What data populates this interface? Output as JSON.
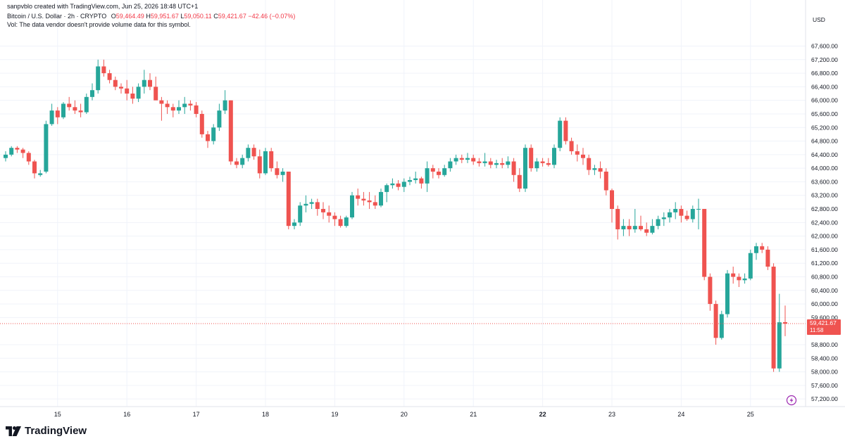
{
  "header": {
    "credit": "sanpvblo created with TradingView.com, Jun 25, 2026 18:48 UTC+1",
    "symbol": "Bitcoin / U.S. Dollar · 2h · CRYPTO",
    "o_label": "O",
    "o_value": "59,464.49",
    "h_label": "H",
    "h_value": "59,951.67",
    "l_label": "L",
    "l_value": "59,050.11",
    "c_label": "C",
    "c_value": "59,421.67",
    "change": "−42.46 (−0.07%)",
    "vol_note": "Vol: The data vendor doesn't provide volume data for this symbol."
  },
  "brand": {
    "name": "TradingView",
    "logo_icon": "tradingview-logo-icon"
  },
  "colors": {
    "up": "#26a69a",
    "down": "#ef5350",
    "grid": "#f0f3fa",
    "axis": "#e0e3eb"
  },
  "chart_data": {
    "type": "candlestick",
    "currency": "USD",
    "y_ticks": [
      "67,600.00",
      "67,200.00",
      "66,800.00",
      "66,400.00",
      "66,000.00",
      "65,600.00",
      "65,200.00",
      "64,800.00",
      "64,400.00",
      "64,000.00",
      "63,600.00",
      "63,200.00",
      "62,800.00",
      "62,400.00",
      "62,000.00",
      "61,600.00",
      "61,200.00",
      "60,800.00",
      "60,400.00",
      "60,000.00",
      "59,600.00",
      "58,800.00",
      "58,400.00",
      "58,000.00",
      "57,600.00",
      "57,200.00"
    ],
    "ylim": [
      57100,
      67900
    ],
    "x_ticks": [
      {
        "label": "15",
        "index": 9
      },
      {
        "label": "16",
        "index": 21
      },
      {
        "label": "17",
        "index": 33
      },
      {
        "label": "18",
        "index": 45
      },
      {
        "label": "19",
        "index": 57
      },
      {
        "label": "20",
        "index": 69
      },
      {
        "label": "21",
        "index": 81
      },
      {
        "label": "22",
        "index": 93
      },
      {
        "label": "23",
        "index": 105
      },
      {
        "label": "24",
        "index": 117
      },
      {
        "label": "25",
        "index": 129
      }
    ],
    "last_price": {
      "value": 59421.67,
      "label": "59,421.67",
      "countdown": "11:58"
    },
    "candles": [
      {
        "o": 64300,
        "h": 64500,
        "l": 64200,
        "c": 64400
      },
      {
        "o": 64400,
        "h": 64650,
        "l": 64350,
        "c": 64600
      },
      {
        "o": 64600,
        "h": 64650,
        "l": 64450,
        "c": 64550
      },
      {
        "o": 64550,
        "h": 64600,
        "l": 64300,
        "c": 64450
      },
      {
        "o": 64450,
        "h": 64500,
        "l": 64100,
        "c": 64200
      },
      {
        "o": 64200,
        "h": 64250,
        "l": 63700,
        "c": 63850
      },
      {
        "o": 63800,
        "h": 63950,
        "l": 63750,
        "c": 63850
      },
      {
        "o": 63900,
        "h": 65400,
        "l": 63850,
        "c": 65300
      },
      {
        "o": 65300,
        "h": 65900,
        "l": 65250,
        "c": 65700
      },
      {
        "o": 65700,
        "h": 65800,
        "l": 65300,
        "c": 65500
      },
      {
        "o": 65500,
        "h": 65950,
        "l": 65450,
        "c": 65900
      },
      {
        "o": 65900,
        "h": 66100,
        "l": 65700,
        "c": 65800
      },
      {
        "o": 65800,
        "h": 66000,
        "l": 65600,
        "c": 65700
      },
      {
        "o": 65700,
        "h": 65900,
        "l": 65500,
        "c": 65650
      },
      {
        "o": 65650,
        "h": 66200,
        "l": 65600,
        "c": 66100
      },
      {
        "o": 66100,
        "h": 66500,
        "l": 66000,
        "c": 66300
      },
      {
        "o": 66300,
        "h": 67200,
        "l": 66200,
        "c": 67000
      },
      {
        "o": 67000,
        "h": 67200,
        "l": 66700,
        "c": 66800
      },
      {
        "o": 66800,
        "h": 66900,
        "l": 66500,
        "c": 66600
      },
      {
        "o": 66600,
        "h": 66700,
        "l": 66300,
        "c": 66400
      },
      {
        "o": 66400,
        "h": 66500,
        "l": 66200,
        "c": 66350
      },
      {
        "o": 66350,
        "h": 66600,
        "l": 66000,
        "c": 66200
      },
      {
        "o": 66200,
        "h": 66400,
        "l": 65900,
        "c": 66050
      },
      {
        "o": 66050,
        "h": 66500,
        "l": 65950,
        "c": 66400
      },
      {
        "o": 66400,
        "h": 66900,
        "l": 66200,
        "c": 66600
      },
      {
        "o": 66600,
        "h": 66800,
        "l": 66300,
        "c": 66400
      },
      {
        "o": 66400,
        "h": 66700,
        "l": 66100,
        "c": 66000
      },
      {
        "o": 66000,
        "h": 66100,
        "l": 65400,
        "c": 65900
      },
      {
        "o": 65900,
        "h": 66000,
        "l": 65600,
        "c": 65800
      },
      {
        "o": 65800,
        "h": 65900,
        "l": 65500,
        "c": 65700
      },
      {
        "o": 65700,
        "h": 66000,
        "l": 65600,
        "c": 65800
      },
      {
        "o": 65800,
        "h": 66100,
        "l": 65600,
        "c": 65900
      },
      {
        "o": 65900,
        "h": 66000,
        "l": 65700,
        "c": 65850
      },
      {
        "o": 65850,
        "h": 65950,
        "l": 65500,
        "c": 65600
      },
      {
        "o": 65600,
        "h": 65700,
        "l": 64900,
        "c": 65000
      },
      {
        "o": 65000,
        "h": 65100,
        "l": 64600,
        "c": 64800
      },
      {
        "o": 64800,
        "h": 65300,
        "l": 64700,
        "c": 65200
      },
      {
        "o": 65200,
        "h": 65900,
        "l": 65100,
        "c": 65700
      },
      {
        "o": 65700,
        "h": 66300,
        "l": 65600,
        "c": 66000
      },
      {
        "o": 66000,
        "h": 66000,
        "l": 64100,
        "c": 64200
      },
      {
        "o": 64200,
        "h": 64300,
        "l": 64000,
        "c": 64100
      },
      {
        "o": 64100,
        "h": 64400,
        "l": 64000,
        "c": 64300
      },
      {
        "o": 64300,
        "h": 64700,
        "l": 64200,
        "c": 64600
      },
      {
        "o": 64600,
        "h": 64700,
        "l": 64250,
        "c": 64350
      },
      {
        "o": 64350,
        "h": 64550,
        "l": 63700,
        "c": 63850
      },
      {
        "o": 63850,
        "h": 64600,
        "l": 63800,
        "c": 64500
      },
      {
        "o": 64500,
        "h": 64600,
        "l": 63900,
        "c": 64000
      },
      {
        "o": 64000,
        "h": 64200,
        "l": 63700,
        "c": 63800
      },
      {
        "o": 63800,
        "h": 64000,
        "l": 63600,
        "c": 63900
      },
      {
        "o": 63900,
        "h": 63900,
        "l": 62200,
        "c": 62300
      },
      {
        "o": 62300,
        "h": 62500,
        "l": 62200,
        "c": 62400
      },
      {
        "o": 62400,
        "h": 63000,
        "l": 62300,
        "c": 62900
      },
      {
        "o": 62900,
        "h": 63200,
        "l": 62700,
        "c": 62950
      },
      {
        "o": 62950,
        "h": 63100,
        "l": 62800,
        "c": 63000
      },
      {
        "o": 63000,
        "h": 63100,
        "l": 62600,
        "c": 62800
      },
      {
        "o": 62800,
        "h": 63000,
        "l": 62500,
        "c": 62700
      },
      {
        "o": 62700,
        "h": 62900,
        "l": 62400,
        "c": 62600
      },
      {
        "o": 62600,
        "h": 62700,
        "l": 62300,
        "c": 62500
      },
      {
        "o": 62500,
        "h": 62600,
        "l": 62250,
        "c": 62300
      },
      {
        "o": 62300,
        "h": 62600,
        "l": 62250,
        "c": 62550
      },
      {
        "o": 62550,
        "h": 63300,
        "l": 62500,
        "c": 63200
      },
      {
        "o": 63200,
        "h": 63400,
        "l": 62900,
        "c": 63100
      },
      {
        "o": 63100,
        "h": 63300,
        "l": 62900,
        "c": 63050
      },
      {
        "o": 63050,
        "h": 63300,
        "l": 62800,
        "c": 63000
      },
      {
        "o": 63000,
        "h": 63200,
        "l": 62800,
        "c": 62900
      },
      {
        "o": 62900,
        "h": 63400,
        "l": 62850,
        "c": 63300
      },
      {
        "o": 63300,
        "h": 63550,
        "l": 63000,
        "c": 63500
      },
      {
        "o": 63500,
        "h": 63700,
        "l": 63400,
        "c": 63550
      },
      {
        "o": 63550,
        "h": 63650,
        "l": 63350,
        "c": 63450
      },
      {
        "o": 63450,
        "h": 63700,
        "l": 63300,
        "c": 63600
      },
      {
        "o": 63600,
        "h": 63750,
        "l": 63500,
        "c": 63650
      },
      {
        "o": 63650,
        "h": 63900,
        "l": 63550,
        "c": 63700
      },
      {
        "o": 63700,
        "h": 63750,
        "l": 63400,
        "c": 63550
      },
      {
        "o": 63550,
        "h": 64200,
        "l": 63300,
        "c": 64000
      },
      {
        "o": 64000,
        "h": 64100,
        "l": 63700,
        "c": 63900
      },
      {
        "o": 63900,
        "h": 64000,
        "l": 63700,
        "c": 63800
      },
      {
        "o": 63800,
        "h": 64100,
        "l": 63750,
        "c": 64000
      },
      {
        "o": 64000,
        "h": 64300,
        "l": 63900,
        "c": 64200
      },
      {
        "o": 64200,
        "h": 64400,
        "l": 64100,
        "c": 64300
      },
      {
        "o": 64300,
        "h": 64400,
        "l": 64150,
        "c": 64250
      },
      {
        "o": 64250,
        "h": 64450,
        "l": 64150,
        "c": 64300
      },
      {
        "o": 64300,
        "h": 64400,
        "l": 64100,
        "c": 64200
      },
      {
        "o": 64200,
        "h": 64300,
        "l": 64050,
        "c": 64150
      },
      {
        "o": 64150,
        "h": 64450,
        "l": 64050,
        "c": 64200
      },
      {
        "o": 64200,
        "h": 64300,
        "l": 64000,
        "c": 64100
      },
      {
        "o": 64100,
        "h": 64250,
        "l": 64000,
        "c": 64150
      },
      {
        "o": 64150,
        "h": 64300,
        "l": 64000,
        "c": 64100
      },
      {
        "o": 64100,
        "h": 64350,
        "l": 64000,
        "c": 64200
      },
      {
        "o": 64200,
        "h": 64300,
        "l": 63600,
        "c": 63800
      },
      {
        "o": 63800,
        "h": 64000,
        "l": 63300,
        "c": 63400
      },
      {
        "o": 63400,
        "h": 64700,
        "l": 63300,
        "c": 64600
      },
      {
        "o": 64600,
        "h": 64700,
        "l": 63900,
        "c": 64000
      },
      {
        "o": 64000,
        "h": 64300,
        "l": 63900,
        "c": 64200
      },
      {
        "o": 64200,
        "h": 64300,
        "l": 64050,
        "c": 64150
      },
      {
        "o": 64150,
        "h": 64300,
        "l": 64050,
        "c": 64100
      },
      {
        "o": 64100,
        "h": 64700,
        "l": 64000,
        "c": 64600
      },
      {
        "o": 64600,
        "h": 65500,
        "l": 64500,
        "c": 65400
      },
      {
        "o": 65400,
        "h": 65500,
        "l": 64700,
        "c": 64800
      },
      {
        "o": 64800,
        "h": 64900,
        "l": 64400,
        "c": 64500
      },
      {
        "o": 64500,
        "h": 64700,
        "l": 64200,
        "c": 64400
      },
      {
        "o": 64400,
        "h": 64600,
        "l": 64100,
        "c": 64300
      },
      {
        "o": 64300,
        "h": 64400,
        "l": 63800,
        "c": 63950
      },
      {
        "o": 63950,
        "h": 64100,
        "l": 63800,
        "c": 64000
      },
      {
        "o": 64000,
        "h": 64200,
        "l": 63700,
        "c": 63900
      },
      {
        "o": 63900,
        "h": 64000,
        "l": 63200,
        "c": 63350
      },
      {
        "o": 63350,
        "h": 63400,
        "l": 62400,
        "c": 62800
      },
      {
        "o": 62800,
        "h": 62900,
        "l": 61900,
        "c": 62200
      },
      {
        "o": 62200,
        "h": 62500,
        "l": 62000,
        "c": 62300
      },
      {
        "o": 62300,
        "h": 62500,
        "l": 62000,
        "c": 62200
      },
      {
        "o": 62200,
        "h": 62800,
        "l": 62100,
        "c": 62300
      },
      {
        "o": 62300,
        "h": 62600,
        "l": 62150,
        "c": 62200
      },
      {
        "o": 62200,
        "h": 62400,
        "l": 62000,
        "c": 62100
      },
      {
        "o": 62100,
        "h": 62500,
        "l": 62050,
        "c": 62300
      },
      {
        "o": 62300,
        "h": 62600,
        "l": 62200,
        "c": 62500
      },
      {
        "o": 62500,
        "h": 62700,
        "l": 62300,
        "c": 62550
      },
      {
        "o": 62550,
        "h": 62800,
        "l": 62400,
        "c": 62700
      },
      {
        "o": 62700,
        "h": 63000,
        "l": 62500,
        "c": 62800
      },
      {
        "o": 62800,
        "h": 62900,
        "l": 62400,
        "c": 62600
      },
      {
        "o": 62600,
        "h": 62750,
        "l": 62450,
        "c": 62500
      },
      {
        "o": 62500,
        "h": 62900,
        "l": 62400,
        "c": 62800
      },
      {
        "o": 62800,
        "h": 63100,
        "l": 62200,
        "c": 62800
      },
      {
        "o": 62800,
        "h": 62800,
        "l": 60700,
        "c": 60800
      },
      {
        "o": 60800,
        "h": 60900,
        "l": 59800,
        "c": 60000
      },
      {
        "o": 60000,
        "h": 60100,
        "l": 58800,
        "c": 59000
      },
      {
        "o": 59000,
        "h": 59800,
        "l": 58950,
        "c": 59700
      },
      {
        "o": 59700,
        "h": 61000,
        "l": 59600,
        "c": 60900
      },
      {
        "o": 60900,
        "h": 61100,
        "l": 60600,
        "c": 60800
      },
      {
        "o": 60800,
        "h": 60900,
        "l": 60500,
        "c": 60700
      },
      {
        "o": 60700,
        "h": 60900,
        "l": 60600,
        "c": 60750
      },
      {
        "o": 60750,
        "h": 61600,
        "l": 60700,
        "c": 61500
      },
      {
        "o": 61500,
        "h": 61800,
        "l": 61300,
        "c": 61700
      },
      {
        "o": 61700,
        "h": 61800,
        "l": 61500,
        "c": 61600
      },
      {
        "o": 61600,
        "h": 61700,
        "l": 61000,
        "c": 61100
      },
      {
        "o": 61100,
        "h": 61200,
        "l": 58000,
        "c": 58100
      },
      {
        "o": 58100,
        "h": 60300,
        "l": 58000,
        "c": 59460
      },
      {
        "o": 59464.49,
        "h": 59951.67,
        "l": 59050.11,
        "c": 59421.67
      }
    ]
  }
}
